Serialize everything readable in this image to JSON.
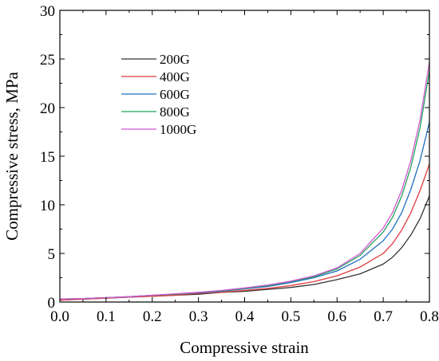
{
  "chart_data": {
    "type": "line",
    "xlabel": "Compressive strain",
    "ylabel": "Compressive stress, MPa",
    "xlim": [
      0.0,
      0.8
    ],
    "ylim": [
      0,
      30
    ],
    "x_ticks": [
      "0.0",
      "0.1",
      "0.2",
      "0.3",
      "0.4",
      "0.5",
      "0.6",
      "0.7",
      "0.8"
    ],
    "y_ticks": [
      "0",
      "5",
      "10",
      "15",
      "20",
      "25",
      "30"
    ],
    "grid": false,
    "legend_position": "top-left",
    "x": [
      0.0,
      0.05,
      0.1,
      0.15,
      0.2,
      0.25,
      0.3,
      0.35,
      0.4,
      0.45,
      0.5,
      0.55,
      0.6,
      0.65,
      0.7,
      0.72,
      0.74,
      0.76,
      0.78,
      0.8
    ],
    "series": [
      {
        "name": "200G",
        "color": "#333333",
        "values": [
          0.2,
          0.3,
          0.4,
          0.5,
          0.6,
          0.7,
          0.8,
          1.0,
          1.1,
          1.3,
          1.5,
          1.8,
          2.3,
          2.9,
          3.9,
          4.6,
          5.6,
          6.9,
          8.6,
          10.9
        ]
      },
      {
        "name": "400G",
        "color": "#e03a3a",
        "values": [
          0.2,
          0.3,
          0.4,
          0.5,
          0.6,
          0.7,
          0.9,
          1.0,
          1.2,
          1.4,
          1.7,
          2.1,
          2.7,
          3.6,
          5.0,
          6.0,
          7.4,
          9.2,
          11.5,
          14.2
        ]
      },
      {
        "name": "600G",
        "color": "#1f6fbf",
        "values": [
          0.3,
          0.35,
          0.45,
          0.55,
          0.7,
          0.8,
          0.95,
          1.1,
          1.35,
          1.6,
          2.0,
          2.5,
          3.2,
          4.4,
          6.3,
          7.5,
          9.2,
          11.6,
          14.6,
          18.5
        ]
      },
      {
        "name": "800G",
        "color": "#1fa35a",
        "values": [
          0.3,
          0.35,
          0.45,
          0.55,
          0.7,
          0.8,
          1.0,
          1.15,
          1.4,
          1.7,
          2.1,
          2.6,
          3.4,
          4.8,
          7.2,
          8.7,
          10.9,
          13.9,
          18.0,
          23.8
        ]
      },
      {
        "name": "1000G",
        "color": "#d25ad2",
        "values": [
          0.3,
          0.35,
          0.45,
          0.55,
          0.7,
          0.85,
          1.0,
          1.2,
          1.45,
          1.75,
          2.15,
          2.7,
          3.5,
          5.0,
          7.6,
          9.2,
          11.5,
          14.6,
          18.8,
          24.7
        ]
      }
    ]
  }
}
